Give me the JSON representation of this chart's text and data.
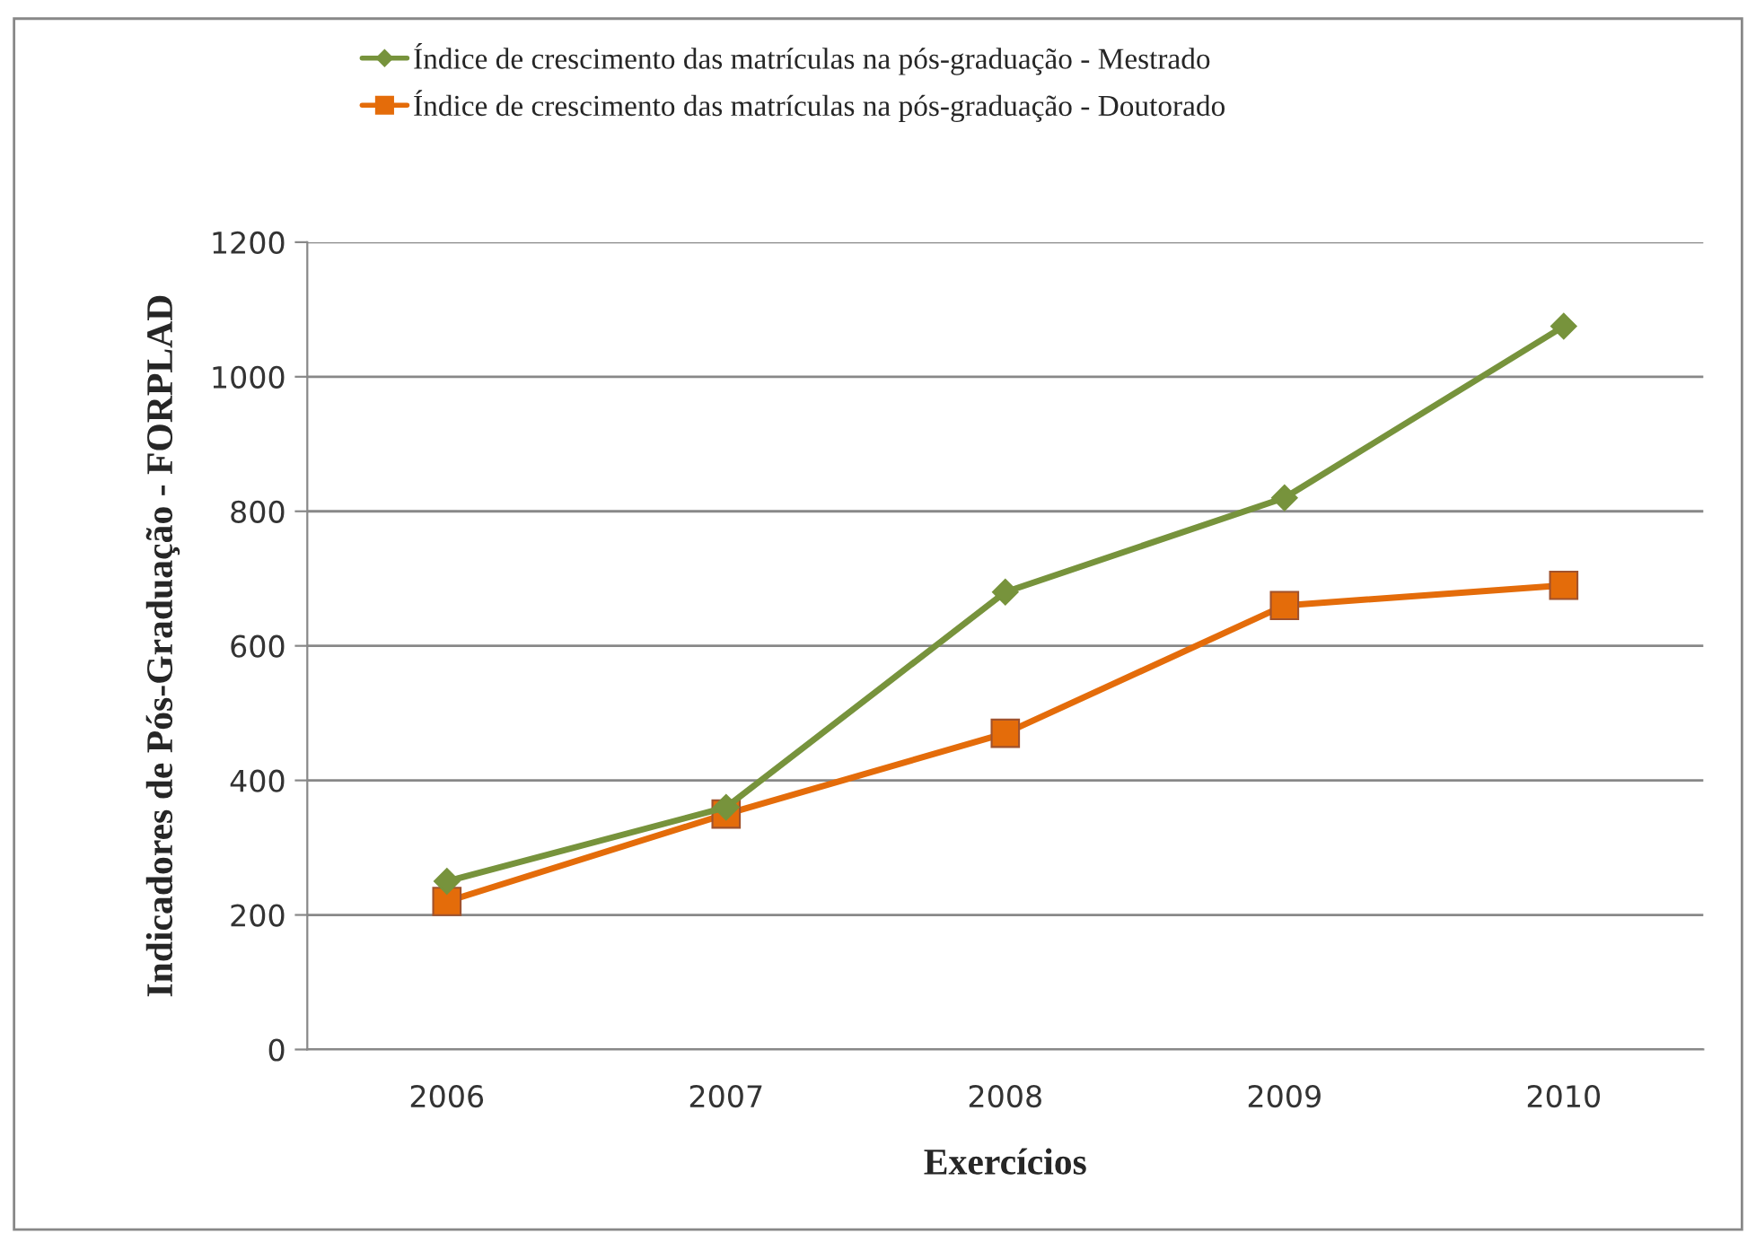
{
  "chart_data": {
    "type": "line",
    "xlabel": "Exercícios",
    "ylabel": "Indicadores de Pós-Graduação - FORPLAD",
    "categories": [
      "2006",
      "2007",
      "2008",
      "2009",
      "2010"
    ],
    "series": [
      {
        "name": "Índice de crescimento das matrículas na pós-graduação - Mestrado",
        "color": "#77933c",
        "marker": "diamond",
        "values": [
          250,
          360,
          680,
          820,
          1075
        ]
      },
      {
        "name": "Índice de crescimento das matrículas na pós-graduação - Doutorado",
        "color": "#e46c0a",
        "marker": "square",
        "values": [
          220,
          350,
          470,
          660,
          690
        ]
      }
    ],
    "ylim": [
      0,
      1200
    ],
    "yticks": [
      0,
      200,
      400,
      600,
      800,
      1000,
      1200
    ],
    "grid": "y",
    "legend": "top"
  }
}
